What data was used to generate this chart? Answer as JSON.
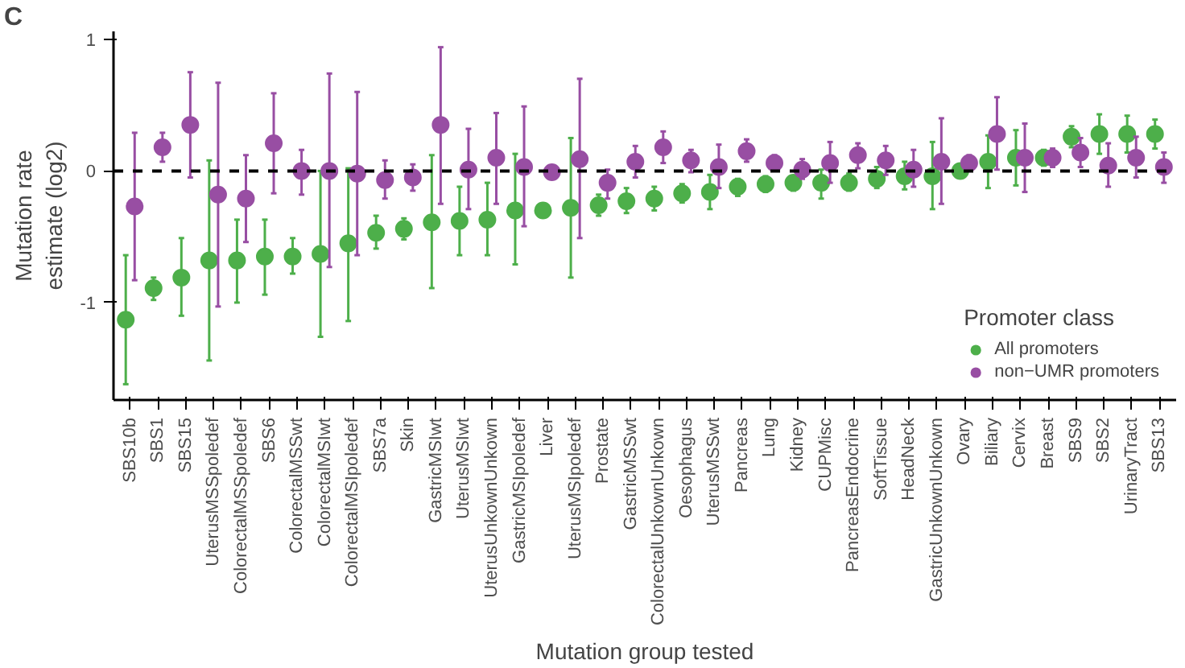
{
  "chart_data": {
    "type": "scatter",
    "xlabel": "Mutation group tested",
    "ylabel": "Mutation rate\nestimate (log2)",
    "legend_title": "Promoter class",
    "legend": "bottom right",
    "grid": false,
    "marker": "circle",
    "annotations": [
      "C"
    ],
    "categories": [
      "SBS10b",
      "SBS1",
      "SBS15",
      "UterusMSSpoledef",
      "ColorectalMSSpoledef",
      "SBS6",
      "ColorectalMSSwt",
      "ColorectalMSIwt",
      "ColorectalMSIpoledef",
      "SBS7a",
      "Skin",
      "GastricMSIwt",
      "UterusMSIwt",
      "UterusUnkownUnkown",
      "GastricMSIpoledef",
      "Liver",
      "UterusMSIpoledef",
      "Prostate",
      "GastricMSSwt",
      "ColorectalUnkownUnkown",
      "Oesophagus",
      "UterusMSSwt",
      "Pancreas",
      "Lung",
      "Kidney",
      "CUPMisc",
      "PancreasEndocrine",
      "SoftTissue",
      "HeadNeck",
      "GastricUnkownUnkown",
      "Ovary",
      "Biliary",
      "Cervix",
      "Breast",
      "SBS9",
      "SBS2",
      "UrinaryTract",
      "SBS13"
    ],
    "ylim": [
      -1.74,
      1.06
    ],
    "yticks": [
      -1,
      0,
      1
    ],
    "ref_lines": [
      {
        "axis": "y",
        "value": 0,
        "line_style": "dashed",
        "color": "#000000"
      }
    ],
    "series": [
      {
        "name": "All promoters",
        "color": "#4daf4a",
        "values": [
          -1.13,
          -0.89,
          -0.81,
          -0.68,
          -0.68,
          -0.65,
          -0.65,
          -0.63,
          -0.55,
          -0.47,
          -0.44,
          -0.39,
          -0.38,
          -0.37,
          -0.3,
          -0.3,
          -0.28,
          -0.26,
          -0.23,
          -0.21,
          -0.17,
          -0.16,
          -0.12,
          -0.1,
          -0.09,
          -0.09,
          -0.09,
          -0.06,
          -0.04,
          -0.04,
          0.0,
          0.07,
          0.1,
          0.1,
          0.26,
          0.28,
          0.28,
          0.28
        ],
        "errors": [
          [
            -1.62,
            -0.64
          ],
          [
            -0.98,
            -0.81
          ],
          [
            -1.1,
            -0.51
          ],
          [
            -1.44,
            0.08
          ],
          [
            -1.0,
            -0.37
          ],
          [
            -0.94,
            -0.37
          ],
          [
            -0.78,
            -0.51
          ],
          [
            -1.26,
            0.0
          ],
          [
            -1.14,
            0.02
          ],
          [
            -0.59,
            -0.34
          ],
          [
            -0.52,
            -0.36
          ],
          [
            -0.89,
            0.12
          ],
          [
            -0.64,
            -0.12
          ],
          [
            -0.64,
            -0.09
          ],
          [
            -0.71,
            0.13
          ],
          null,
          [
            -0.81,
            0.25
          ],
          [
            -0.34,
            -0.18
          ],
          [
            -0.32,
            -0.13
          ],
          [
            -0.3,
            -0.12
          ],
          [
            -0.24,
            -0.1
          ],
          [
            -0.29,
            -0.03
          ],
          [
            -0.19,
            -0.06
          ],
          [
            -0.16,
            -0.04
          ],
          [
            -0.15,
            -0.04
          ],
          [
            -0.21,
            0.01
          ],
          [
            -0.15,
            -0.02
          ],
          [
            -0.13,
            0.03
          ],
          [
            -0.14,
            0.07
          ],
          [
            -0.29,
            0.22
          ],
          [
            -0.05,
            0.04
          ],
          [
            -0.13,
            0.27
          ],
          [
            -0.11,
            0.31
          ],
          [
            0.04,
            0.16
          ],
          [
            0.18,
            0.34
          ],
          [
            0.13,
            0.43
          ],
          [
            0.14,
            0.42
          ],
          [
            0.17,
            0.39
          ]
        ]
      },
      {
        "name": "non−UMR promoters",
        "color": "#984ea3",
        "values": [
          -0.27,
          0.18,
          0.35,
          -0.18,
          -0.21,
          0.21,
          0.0,
          0.0,
          -0.02,
          -0.07,
          -0.05,
          0.35,
          0.01,
          0.1,
          0.03,
          -0.01,
          0.09,
          -0.09,
          0.07,
          0.18,
          0.08,
          0.03,
          0.15,
          0.06,
          0.01,
          0.06,
          0.12,
          0.08,
          0.01,
          0.07,
          0.06,
          0.28,
          0.1,
          0.1,
          0.14,
          0.04,
          0.1,
          0.03
        ],
        "errors": [
          [
            -0.83,
            0.29
          ],
          [
            0.07,
            0.29
          ],
          [
            -0.05,
            0.75
          ],
          [
            -1.03,
            0.67
          ],
          [
            -0.54,
            0.12
          ],
          [
            -0.17,
            0.59
          ],
          [
            -0.18,
            0.16
          ],
          [
            -0.73,
            0.74
          ],
          [
            -0.64,
            0.6
          ],
          [
            -0.21,
            0.08
          ],
          [
            -0.15,
            0.05
          ],
          [
            -0.25,
            0.94
          ],
          [
            -0.29,
            0.32
          ],
          [
            -0.25,
            0.44
          ],
          [
            -0.42,
            0.49
          ],
          null,
          [
            -0.51,
            0.7
          ],
          [
            -0.21,
            0.01
          ],
          [
            -0.05,
            0.19
          ],
          [
            0.06,
            0.3
          ],
          [
            -0.01,
            0.16
          ],
          [
            -0.13,
            0.2
          ],
          [
            0.07,
            0.24
          ],
          [
            0.01,
            0.12
          ],
          [
            -0.06,
            0.09
          ],
          [
            -0.09,
            0.22
          ],
          [
            0.02,
            0.21
          ],
          [
            -0.03,
            0.19
          ],
          [
            -0.12,
            0.16
          ],
          [
            -0.25,
            0.4
          ],
          [
            0.0,
            0.12
          ],
          [
            0.01,
            0.56
          ],
          [
            -0.16,
            0.36
          ],
          [
            0.03,
            0.17
          ],
          [
            0.03,
            0.25
          ],
          [
            -0.12,
            0.21
          ],
          [
            -0.05,
            0.26
          ],
          [
            -0.09,
            0.14
          ]
        ]
      }
    ]
  }
}
